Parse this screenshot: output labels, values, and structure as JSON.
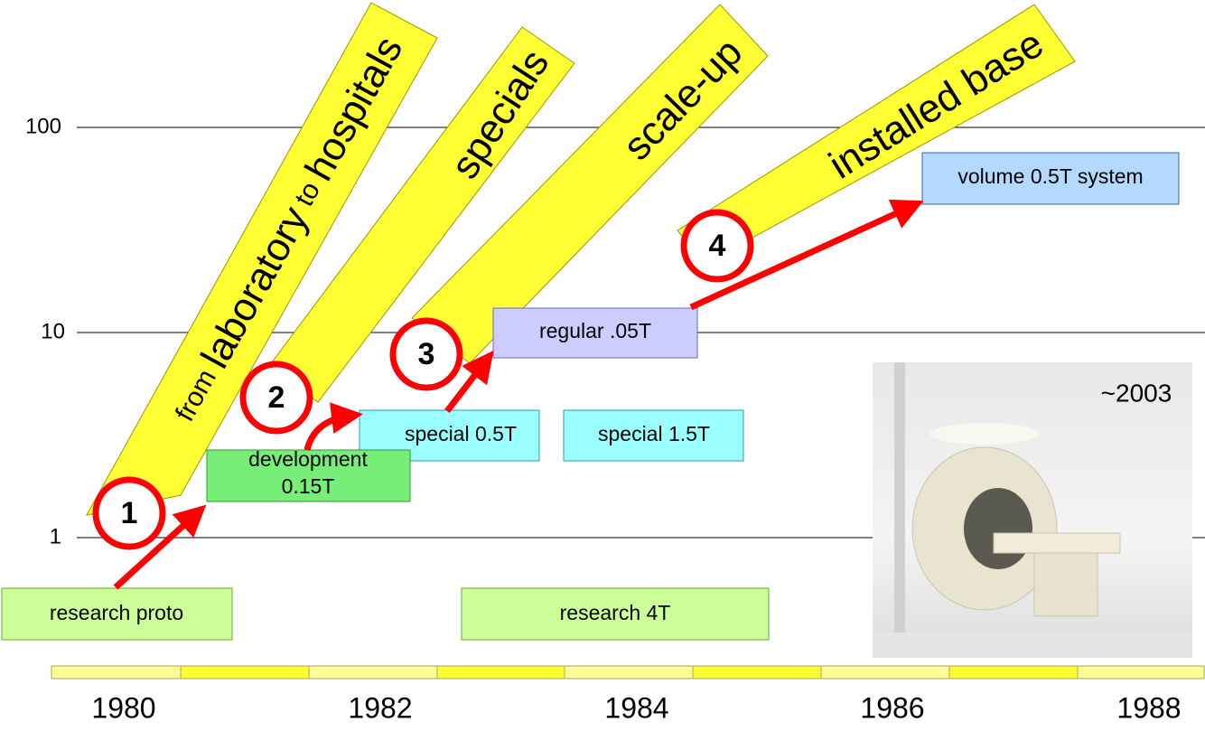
{
  "y_axis": {
    "labels": [
      "100",
      "10",
      "1"
    ]
  },
  "timeline": {
    "years": [
      "1980",
      "1982",
      "1984",
      "1986",
      "1988"
    ]
  },
  "banners": [
    {
      "parts": [
        "from",
        "laboratory",
        "to",
        "hospitals"
      ]
    },
    {
      "text": "specials"
    },
    {
      "text": "scale-up"
    },
    {
      "text": "installed base"
    }
  ],
  "steps": [
    "1",
    "2",
    "3",
    "4"
  ],
  "boxes": [
    {
      "lines": [
        "research proto"
      ]
    },
    {
      "lines": [
        "research 4T"
      ]
    },
    {
      "lines": [
        "development",
        "0.15T"
      ]
    },
    {
      "lines": [
        "special 0.5T"
      ]
    },
    {
      "lines": [
        "special 1.5T"
      ]
    },
    {
      "lines": [
        "regular .05T"
      ]
    },
    {
      "lines": [
        "volume 0.5T system"
      ]
    }
  ],
  "photo": {
    "caption": "~2003"
  }
}
